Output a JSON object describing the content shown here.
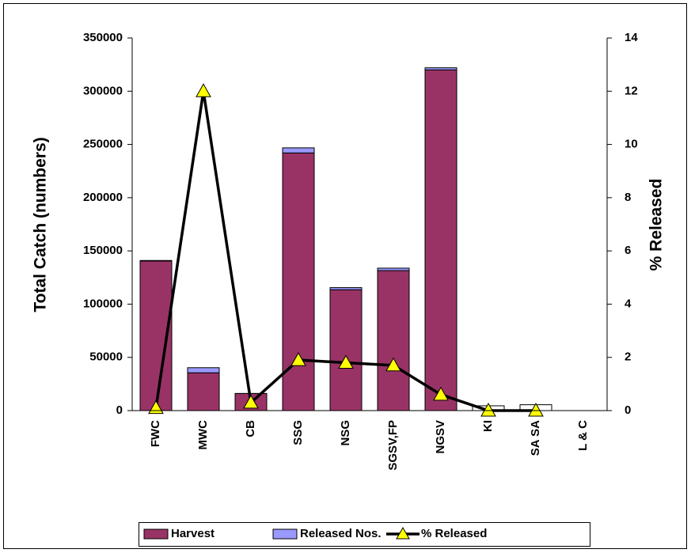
{
  "chart_data": {
    "type": "bar",
    "categories": [
      "FWC",
      "MWC",
      "CB",
      "SSG",
      "NSG",
      "SGSV,FP",
      "NGSV",
      "KI",
      "SA SA",
      "L & C"
    ],
    "y_label": "Total Catch (numbers)",
    "y2_label": "% Released",
    "series": [
      {
        "name": "Harvest",
        "color": "#993366",
        "values": [
          140500,
          35500,
          16000,
          242000,
          113500,
          131500,
          320000,
          4500,
          5500,
          null
        ],
        "point_colors": [
          "#993366",
          "#993366",
          "#993366",
          "#993366",
          "#993366",
          "#993366",
          "#993366",
          "#ffffff",
          "#ffffff",
          null
        ]
      },
      {
        "name": "Released Nos.",
        "color": "#9999ff",
        "values": [
          500,
          4800,
          100,
          4800,
          2000,
          2300,
          2000,
          0,
          0,
          null
        ]
      },
      {
        "name": "% Released",
        "color": "#000000",
        "marker_color": "#ffff00",
        "axis": "y2",
        "values": [
          0.1,
          12,
          0.3,
          1.9,
          1.8,
          1.7,
          0.6,
          0,
          0,
          null
        ]
      }
    ],
    "ylim": [
      0,
      350000
    ],
    "yticks": [
      0,
      50000,
      100000,
      150000,
      200000,
      250000,
      300000,
      350000
    ],
    "y2lim": [
      0,
      14
    ],
    "y2ticks": [
      0,
      2,
      4,
      6,
      8,
      10,
      12,
      14
    ],
    "legend": "bottom"
  }
}
